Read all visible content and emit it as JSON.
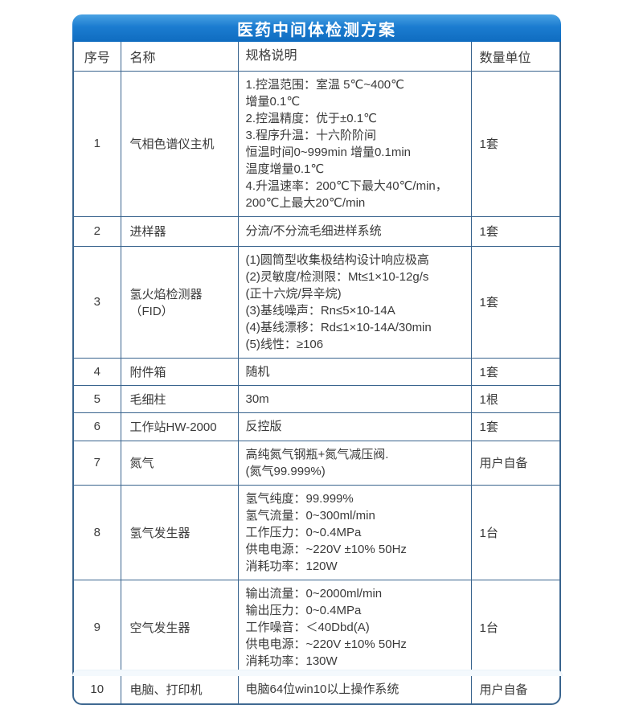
{
  "title": "医药中间体检测方案",
  "colors": {
    "header_blue_top": "#4aa2e3",
    "header_blue_bottom": "#0f6cc0",
    "grid_line": "#39648e",
    "text": "#3a3a3a"
  },
  "table": {
    "headers": [
      "序号",
      "名称",
      "规格说明",
      "数量单位"
    ],
    "rows": [
      {
        "no": "1",
        "name": "气相色谱仪主机",
        "spec": "1.控温范围：室温 5℃~400℃\n增量0.1℃\n2.控温精度：优于±0.1℃\n3.程序升温：十六阶阶间\n恒温时间0~999min 增量0.1min\n温度增量0.1℃\n4.升温速率：200℃下最大40℃/min，\n200℃上最大20℃/min",
        "qty": "1套"
      },
      {
        "no": "2",
        "name": "进样器",
        "spec": "分流/不分流毛细进样系统",
        "qty": "1套"
      },
      {
        "no": "3",
        "name": "氢火焰检测器（FID）",
        "spec": "(1)圆筒型收集极结构设计响应极高\n(2)灵敏度/检测限：Mt≤1×10-12g/s\n(正十六烷/异辛烷)\n(3)基线噪声：Rn≤5×10-14A\n(4)基线漂移：Rd≤1×10-14A/30min\n(5)线性：≥106",
        "qty": "1套"
      },
      {
        "no": "4",
        "name": "附件箱",
        "spec": "随机",
        "qty": "1套"
      },
      {
        "no": "5",
        "name": "毛细柱",
        "spec": "30m",
        "qty": "1根"
      },
      {
        "no": "6",
        "name": "工作站HW-2000",
        "spec": "反控版",
        "qty": "1套"
      },
      {
        "no": "7",
        "name": "氮气",
        "spec": "高纯氮气钢瓶+氮气减压阀.\n(氮气99.999%)",
        "qty": "用户自备"
      },
      {
        "no": "8",
        "name": "氢气发生器",
        "spec": "氢气纯度：99.999%\n氢气流量：0~300ml/min\n工作压力：0~0.4MPa\n供电电源：~220V ±10% 50Hz\n消耗功率：120W",
        "qty": "1台"
      },
      {
        "no": "9",
        "name": "空气发生器",
        "spec": "输出流量：0~2000ml/min\n输出压力：0~0.4MPa\n工作噪音：＜40Dbd(A)\n供电电源：~220V ±10% 50Hz\n消耗功率：130W",
        "qty": "1台"
      },
      {
        "no": "10",
        "name": "电脑、打印机",
        "spec": "电脑64位win10以上操作系统",
        "qty": "用户自备"
      }
    ]
  }
}
